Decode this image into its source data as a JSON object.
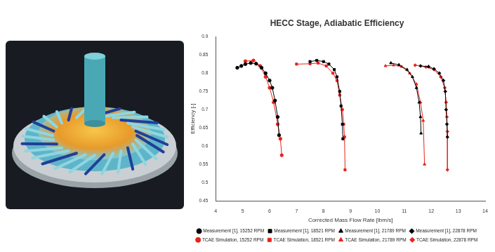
{
  "chart_data": {
    "type": "line",
    "title": "HECC Stage, Adiabatic Efficiency",
    "x_label": "Corrected Mass Flow Rate [lbm/s]",
    "y_label": "Efficiency [-]",
    "xlim": [
      4,
      14
    ],
    "xticks": [
      4,
      5,
      6,
      7,
      8,
      9,
      10,
      11,
      12,
      13,
      14
    ],
    "ylim": [
      0.45,
      0.9
    ],
    "yticks": [
      0.45,
      0.5,
      0.55,
      0.6,
      0.65,
      0.7,
      0.75,
      0.8,
      0.85,
      0.9
    ],
    "grid": false,
    "legend": "bottom",
    "series": [
      {
        "name": "Measurement [1], 15252 RPM",
        "color": "#000000",
        "marker": "circle",
        "line_style": "solid",
        "x": [
          4.8,
          4.95,
          5.1,
          5.3,
          5.5,
          5.7,
          5.85,
          6.0,
          6.1,
          6.2,
          6.3,
          6.35
        ],
        "values": [
          0.815,
          0.82,
          0.825,
          0.828,
          0.826,
          0.815,
          0.8,
          0.78,
          0.76,
          0.725,
          0.68,
          0.63
        ]
      },
      {
        "name": "Measurement [1], 18521 RPM",
        "color": "#000000",
        "marker": "square",
        "line_style": "solid",
        "x": [
          7.5,
          7.75,
          8.0,
          8.2,
          8.4,
          8.5,
          8.6,
          8.65,
          8.7,
          8.72
        ],
        "values": [
          0.832,
          0.835,
          0.832,
          0.825,
          0.81,
          0.79,
          0.75,
          0.71,
          0.66,
          0.62
        ]
      },
      {
        "name": "Measurement [1], 21789 RPM",
        "color": "#000000",
        "marker": "triangle",
        "line_style": "solid",
        "x": [
          10.5,
          10.8,
          11.1,
          11.3,
          11.45,
          11.55,
          11.6,
          11.62
        ],
        "values": [
          0.828,
          0.823,
          0.81,
          0.79,
          0.76,
          0.72,
          0.68,
          0.635
        ]
      },
      {
        "name": "Measurement [1], 22878 RPM",
        "color": "#000000",
        "marker": "diamond",
        "line_style": "solid",
        "x": [
          11.6,
          11.9,
          12.1,
          12.3,
          12.45,
          12.52,
          12.55,
          12.58,
          12.6
        ],
        "values": [
          0.82,
          0.818,
          0.812,
          0.8,
          0.78,
          0.75,
          0.7,
          0.66,
          0.625
        ]
      },
      {
        "name": "TCAE Simulation, 15252 RPM",
        "color": "#e8211c",
        "marker": "circle",
        "line_style": "solid",
        "x": [
          5.1,
          5.4,
          5.65,
          5.85,
          6.0,
          6.15,
          6.3,
          6.4,
          6.45
        ],
        "values": [
          0.833,
          0.835,
          0.82,
          0.79,
          0.76,
          0.72,
          0.66,
          0.62,
          0.575
        ]
      },
      {
        "name": "TCAE Simulation, 18521 RPM",
        "color": "#e8211c",
        "marker": "square",
        "line_style": "solid",
        "x": [
          7.0,
          7.5,
          7.8,
          8.1,
          8.35,
          8.5,
          8.6,
          8.7,
          8.75,
          8.78,
          8.8
        ],
        "values": [
          0.825,
          0.826,
          0.828,
          0.82,
          0.8,
          0.78,
          0.74,
          0.7,
          0.66,
          0.625,
          0.535
        ]
      },
      {
        "name": "TCAE Simulation, 21789 RPM",
        "color": "#e8211c",
        "marker": "triangle",
        "line_style": "solid",
        "x": [
          10.3,
          10.6,
          10.9,
          11.2,
          11.45,
          11.6,
          11.7,
          11.75
        ],
        "values": [
          0.82,
          0.822,
          0.818,
          0.8,
          0.77,
          0.72,
          0.67,
          0.55
        ]
      },
      {
        "name": "TCAE Simulation, 22878 RPM",
        "color": "#e8211c",
        "marker": "diamond",
        "line_style": "solid",
        "x": [
          11.4,
          11.8,
          12.1,
          12.35,
          12.5,
          12.55,
          12.58,
          12.6,
          12.6
        ],
        "values": [
          0.822,
          0.817,
          0.81,
          0.79,
          0.76,
          0.72,
          0.68,
          0.64,
          0.535
        ]
      }
    ]
  }
}
